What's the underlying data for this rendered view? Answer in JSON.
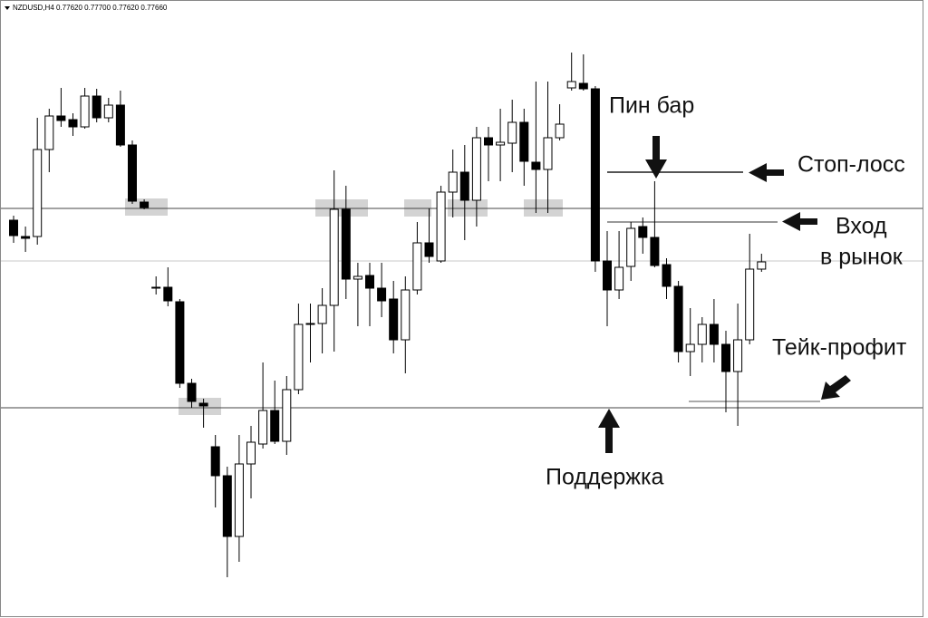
{
  "chart_data": {
    "type": "candlestick",
    "header": "NZDUSD,H4  0.77620 0.77700 0.77620 0.77660",
    "annotations": [
      "Пин бар",
      "Стоп-лосс",
      "Вход",
      "в рынок",
      "Тейк-профит",
      "Поддержка"
    ],
    "ylim": [
      0,
      682
    ],
    "open": [
      439,
      421,
      421,
      517,
      554,
      550,
      542,
      576,
      552,
      566,
      522,
      459,
      365,
      365,
      349,
      259,
      237,
      189,
      157,
      90,
      170,
      192,
      229,
      195,
      252,
      325,
      325,
      345,
      451,
      374,
      378,
      364,
      352,
      307,
      362,
      414,
      394,
      470,
      492,
      461,
      530,
      522,
      524,
      547,
      503,
      495,
      530,
      585,
      590,
      584,
      394,
      362,
      388,
      432,
      420,
      390,
      366,
      294,
      302,
      324,
      302,
      272,
      307,
      385
    ],
    "high": [
      444,
      432,
      552,
      562,
      585,
      557,
      585,
      584,
      574,
      582,
      527,
      462,
      377,
      387,
      352,
      264,
      242,
      202,
      167,
      202,
      212,
      282,
      262,
      267,
      347,
      347,
      364,
      494,
      477,
      392,
      392,
      392,
      372,
      377,
      437,
      452,
      477,
      517,
      522,
      542,
      542,
      562,
      572,
      562,
      592,
      592,
      567,
      624,
      622,
      587,
      427,
      427,
      437,
      442,
      482,
      397,
      372,
      342,
      332,
      352,
      317,
      347,
      424,
      402
    ],
    "low": [
      414,
      404,
      412,
      492,
      542,
      532,
      540,
      547,
      547,
      520,
      457,
      451,
      357,
      344,
      254,
      232,
      210,
      122,
      45,
      62,
      132,
      187,
      192,
      180,
      247,
      282,
      292,
      294,
      352,
      322,
      322,
      332,
      292,
      270,
      357,
      392,
      392,
      442,
      417,
      432,
      482,
      482,
      492,
      477,
      447,
      447,
      527,
      582,
      582,
      382,
      322,
      352,
      372,
      402,
      387,
      352,
      282,
      267,
      282,
      282,
      227,
      212,
      302,
      382
    ],
    "close": [
      422,
      419,
      517,
      554,
      549,
      542,
      576,
      552,
      566,
      522,
      460,
      453,
      365,
      350,
      259,
      239,
      234,
      157,
      90,
      170,
      194,
      229,
      195,
      252,
      324,
      325,
      345,
      451,
      374,
      377,
      364,
      350,
      307,
      362,
      414,
      399,
      470,
      492,
      461,
      530,
      522,
      525,
      547,
      504,
      495,
      530,
      545,
      592,
      584,
      394,
      362,
      387,
      430,
      420,
      389,
      366,
      294,
      302,
      324,
      302,
      272,
      307,
      385,
      393
    ],
    "hlines": [
      452,
      232,
      394
    ],
    "trade_lines": [
      492,
      437,
      239
    ]
  }
}
